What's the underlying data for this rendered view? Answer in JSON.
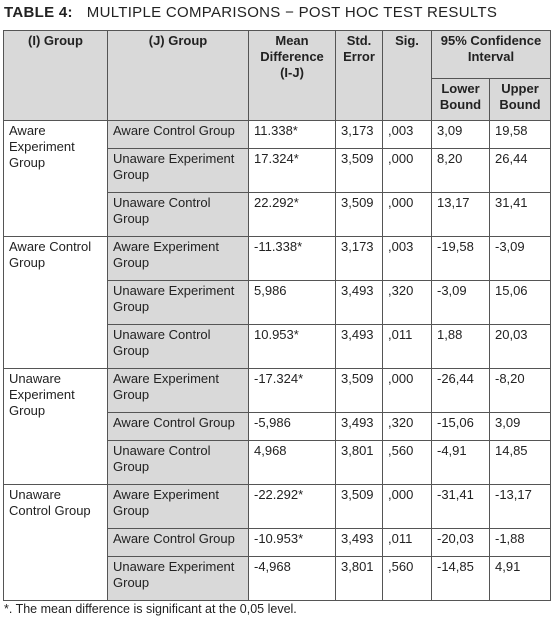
{
  "title": {
    "label": "TABLE 4:",
    "text": "MULTIPLE COMPARISONS − POST HOC TEST RESULTS"
  },
  "table": {
    "headers": {
      "i_group": "(I) Group",
      "j_group": "(J) Group",
      "mean_diff": "Mean Difference (I-J)",
      "std_error": "Std. Error",
      "sig": "Sig.",
      "ci": "95% Confidence Interval",
      "lower": "Lower Bound",
      "upper": "Upper Bound"
    },
    "groups": [
      {
        "name": "Aware Experiment Group",
        "rows": [
          [
            "Aware Control Group",
            "11.338*",
            "3,173",
            ",003",
            "3,09",
            "19,58"
          ],
          [
            "Unaware Experiment Group",
            "17.324*",
            "3,509",
            ",000",
            "8,20",
            "26,44"
          ],
          [
            "Unaware Control Group",
            "22.292*",
            "3,509",
            ",000",
            "13,17",
            "31,41"
          ]
        ]
      },
      {
        "name": "Aware Control Group",
        "rows": [
          [
            "Aware Experiment Group",
            "-11.338*",
            "3,173",
            ",003",
            "-19,58",
            "-3,09"
          ],
          [
            "Unaware Experiment Group",
            "5,986",
            "3,493",
            ",320",
            "-3,09",
            "15,06"
          ],
          [
            "Unaware Control Group",
            "10.953*",
            "3,493",
            ",011",
            "1,88",
            "20,03"
          ]
        ]
      },
      {
        "name": "Unaware Experiment Group",
        "rows": [
          [
            "Aware Experiment Group",
            "-17.324*",
            "3,509",
            ",000",
            "-26,44",
            "-8,20"
          ],
          [
            "Aware Control Group",
            "-5,986",
            "3,493",
            ",320",
            "-15,06",
            "3,09"
          ],
          [
            "Unaware Control Group",
            "4,968",
            "3,801",
            ",560",
            "-4,91",
            "14,85"
          ]
        ]
      },
      {
        "name": "Unaware Control Group",
        "rows": [
          [
            "Aware Experiment Group",
            "-22.292*",
            "3,509",
            ",000",
            "-31,41",
            "-13,17"
          ],
          [
            "Aware Control Group",
            "-10.953*",
            "3,493",
            ",011",
            "-20,03",
            "-1,88"
          ],
          [
            "Unaware Experiment Group",
            "-4,968",
            "3,801",
            ",560",
            "-14,85",
            "4,91"
          ]
        ]
      }
    ]
  },
  "footnote": "*. The mean difference is significant at the 0,05 level."
}
